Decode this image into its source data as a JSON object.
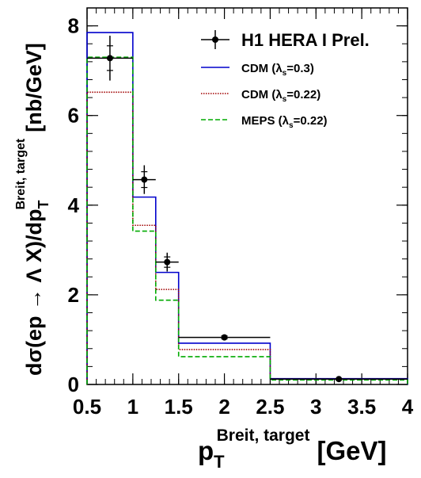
{
  "chart_data": {
    "type": "histogram",
    "xlim": [
      0.5,
      4.0
    ],
    "ylim": [
      0,
      8.4
    ],
    "x_ticks": [
      "0.5",
      "1",
      "1.5",
      "2",
      "2.5",
      "3",
      "3.5",
      "4"
    ],
    "x_tick_values": [
      0.5,
      1.0,
      1.5,
      2.0,
      2.5,
      3.0,
      3.5,
      4.0
    ],
    "y_ticks": [
      "0",
      "2",
      "4",
      "6",
      "8"
    ],
    "y_tick_values": [
      0,
      2,
      4,
      6,
      8
    ],
    "xlabel": {
      "main": "p",
      "sub": "T",
      "sup": "Breit, target",
      "unit": "[GeV]"
    },
    "ylabel": {
      "prefix": "dσ(ep → Λ X)/dp",
      "sub": "T",
      "sup": "Breit, target",
      "unit": "[nb/GeV]"
    },
    "bin_edges": [
      0.5,
      1.0,
      1.25,
      1.5,
      2.5,
      4.0
    ],
    "series": [
      {
        "name": "H1 HERA I Prel.",
        "kind": "data",
        "color": "#000000",
        "points": [
          {
            "x": 0.75,
            "y": 7.28,
            "xerr": 0.25,
            "yerr": 0.5
          },
          {
            "x": 1.125,
            "y": 4.57,
            "xerr": 0.125,
            "yerr": 0.32
          },
          {
            "x": 1.375,
            "y": 2.73,
            "xerr": 0.125,
            "yerr": 0.21
          },
          {
            "x": 2.0,
            "y": 1.05,
            "xerr": 0.5,
            "yerr": 0.06
          },
          {
            "x": 3.25,
            "y": 0.12,
            "xerr": 0.75,
            "yerr": 0.02
          }
        ]
      },
      {
        "name": "CDM (λs=0.3)",
        "legend_main": "CDM (λ",
        "legend_sub": "s",
        "legend_tail": "=0.3)",
        "kind": "hist",
        "color": "#0000cc",
        "dash": "",
        "values": [
          7.85,
          4.18,
          2.5,
          0.92,
          0.13
        ]
      },
      {
        "name": "CDM (λs=0.22)",
        "legend_main": "CDM (λ",
        "legend_sub": "s",
        "legend_tail": "=0.22)",
        "kind": "hist",
        "color": "#a00000",
        "dash": "1.5,1.5",
        "values": [
          6.52,
          3.55,
          2.12,
          0.78,
          0.12
        ]
      },
      {
        "name": "MEPS (λs=0.22)",
        "legend_main": "MEPS (λ",
        "legend_sub": "s",
        "legend_tail": "=0.22)",
        "kind": "hist",
        "color": "#00aa00",
        "dash": "6,3",
        "values": [
          7.3,
          3.42,
          1.88,
          0.62,
          0.1
        ]
      }
    ]
  }
}
